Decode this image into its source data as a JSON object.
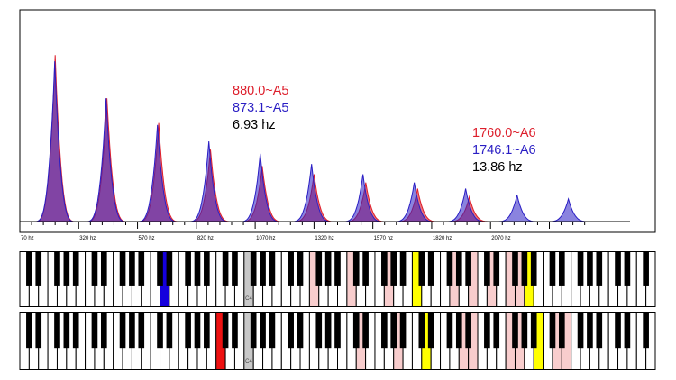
{
  "chart_data": {
    "type": "area",
    "xlim": [
      70,
      2770
    ],
    "ylim": [
      0,
      1
    ],
    "x_ticks": [
      "70 hz",
      "320 hz",
      "570 hz",
      "820 hz",
      "1070 hz",
      "1320 hz",
      "1570 hz",
      "1820 hz",
      "2070 hz"
    ],
    "series": [
      {
        "color": "#dd1f2c",
        "peaks": [
          {
            "x": 220,
            "y": 0.81
          },
          {
            "x": 440,
            "y": 0.6
          },
          {
            "x": 660,
            "y": 0.48
          },
          {
            "x": 880,
            "y": 0.35
          },
          {
            "x": 1100,
            "y": 0.27
          },
          {
            "x": 1320,
            "y": 0.23
          },
          {
            "x": 1540,
            "y": 0.19
          },
          {
            "x": 1760,
            "y": 0.16
          },
          {
            "x": 1980,
            "y": 0.12
          }
        ]
      },
      {
        "color": "#2a1ec4",
        "peaks": [
          {
            "x": 218.3,
            "y": 0.78
          },
          {
            "x": 436.5,
            "y": 0.6
          },
          {
            "x": 654.8,
            "y": 0.47
          },
          {
            "x": 873.1,
            "y": 0.39
          },
          {
            "x": 1091.4,
            "y": 0.33
          },
          {
            "x": 1309.6,
            "y": 0.28
          },
          {
            "x": 1527.9,
            "y": 0.23
          },
          {
            "x": 1746.1,
            "y": 0.19
          },
          {
            "x": 1964.4,
            "y": 0.16
          },
          {
            "x": 2182.7,
            "y": 0.13
          },
          {
            "x": 2400.9,
            "y": 0.11
          }
        ]
      }
    ],
    "annotations": [
      {
        "lines": [
          {
            "text": "880.0~A5",
            "color": "#dd1f2c"
          },
          {
            "text": "873.1~A5",
            "color": "#2a1ec4"
          },
          {
            "text": "6.93 hz",
            "color": "#000000"
          }
        ]
      },
      {
        "lines": [
          {
            "text": "1760.0~A6",
            "color": "#dd1f2c"
          },
          {
            "text": "1746.1~A6",
            "color": "#2a1ec4"
          },
          {
            "text": "13.86 hz",
            "color": "#000000"
          }
        ]
      }
    ]
  },
  "keyboards": {
    "c4_label": "C4",
    "top": {
      "highlights": [
        {
          "key": 15,
          "color": "#1500dd"
        },
        {
          "key": 24,
          "color": "#c8c8c8"
        },
        {
          "key": 31,
          "color": "#f8cdcd"
        },
        {
          "key": 35,
          "color": "#f8cdcd"
        },
        {
          "key": 39,
          "color": "#f8cdcd"
        },
        {
          "key": 42,
          "color": "#ffff00"
        },
        {
          "key": 46,
          "color": "#f8cdcd"
        },
        {
          "key": 48,
          "color": "#f8cdcd"
        },
        {
          "key": 50,
          "color": "#f8cdcd"
        },
        {
          "key": 52,
          "color": "#f8cdcd"
        },
        {
          "key": 53,
          "color": "#f8cdcd"
        },
        {
          "key": 54,
          "color": "#ffff00"
        }
      ]
    },
    "bottom": {
      "highlights": [
        {
          "key": 21,
          "color": "#ee1111"
        },
        {
          "key": 24,
          "color": "#c8c8c8"
        },
        {
          "key": 36,
          "color": "#f8cdcd"
        },
        {
          "key": 40,
          "color": "#f8cdcd"
        },
        {
          "key": 43,
          "color": "#ffff00"
        },
        {
          "key": 47,
          "color": "#f8cdcd"
        },
        {
          "key": 48,
          "color": "#f8cdcd"
        },
        {
          "key": 52,
          "color": "#f8cdcd"
        },
        {
          "key": 53,
          "color": "#f8cdcd"
        },
        {
          "key": 55,
          "color": "#ffff00"
        },
        {
          "key": 57,
          "color": "#f8cdcd"
        },
        {
          "key": 58,
          "color": "#f8cdcd"
        }
      ]
    }
  }
}
